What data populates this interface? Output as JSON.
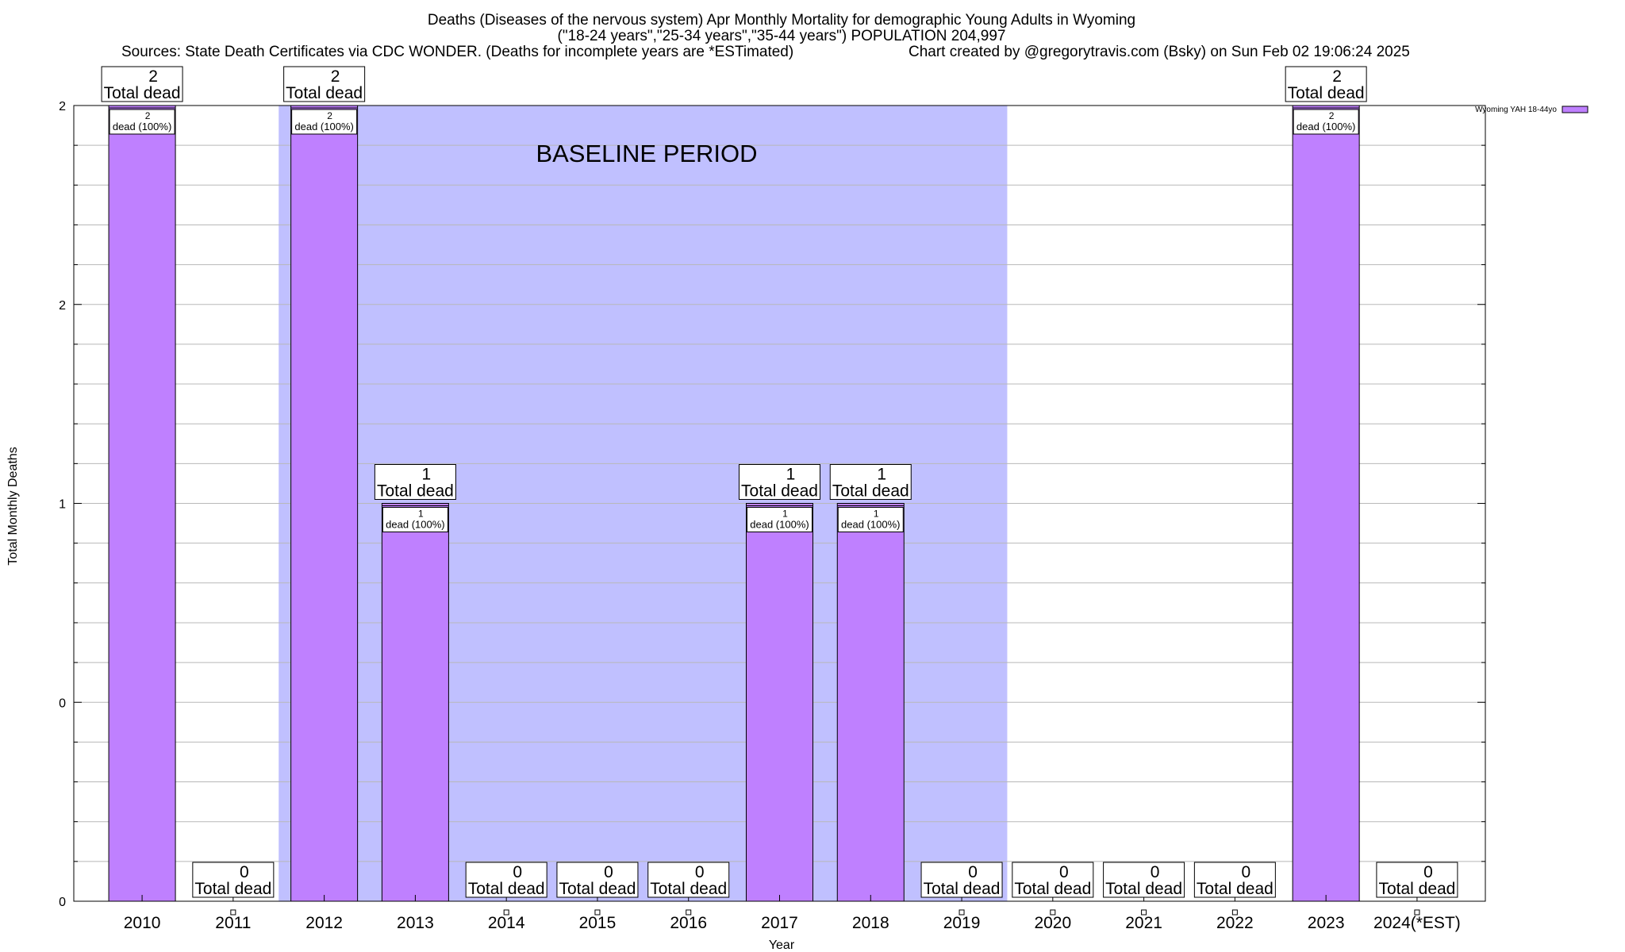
{
  "chart_data": {
    "type": "bar",
    "title_lines": [
      "Deaths (Diseases of the nervous system) Apr Monthly Mortality for demographic Young Adults in Wyoming",
      "(\"18-24 years\",\"25-34 years\",\"35-44 years\") POPULATION 204,997"
    ],
    "sources": "Sources: State Death Certificates via CDC WONDER. (Deaths for incomplete years are *ESTimated)",
    "credit": "Chart created by @gregorytravis.com (Bsky) on Sun Feb 02 19:06:24 2025",
    "xlabel": "Year",
    "ylabel": "Total Monthly Deaths",
    "categories": [
      "2010",
      "2011",
      "2012",
      "2013",
      "2014",
      "2015",
      "2016",
      "2017",
      "2018",
      "2019",
      "2020",
      "2021",
      "2022",
      "2023",
      "2024(*EST)"
    ],
    "series": [
      {
        "name": "Wyoming YAH 18-44yo",
        "values": [
          2,
          0,
          2,
          1,
          0,
          0,
          0,
          1,
          1,
          0,
          0,
          0,
          0,
          2,
          0
        ],
        "color": "#bf80ff"
      }
    ],
    "ylim": [
      0,
      2
    ],
    "y_tick_labels": [
      {
        "value": 0,
        "label": "0"
      },
      {
        "value": 0.5,
        "label": "0"
      },
      {
        "value": 1,
        "label": "1"
      },
      {
        "value": 1.5,
        "label": "2"
      },
      {
        "value": 2,
        "label": "2"
      }
    ],
    "total_label_suffix": "Total dead",
    "bar_label_suffix": "dead (100%)",
    "baseline": {
      "label": "BASELINE PERIOD",
      "from": "2012",
      "to": "2019",
      "color": "#c0c0ff"
    },
    "grid": true,
    "legend_position": "top-right"
  }
}
